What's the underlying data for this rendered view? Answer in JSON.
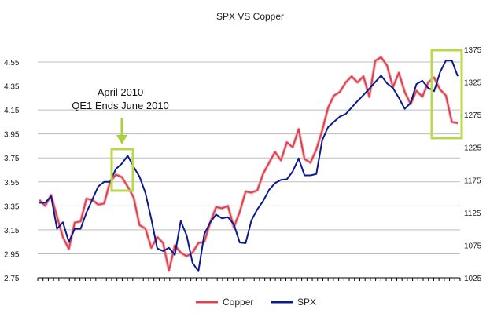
{
  "chart_data": {
    "type": "line",
    "title": "SPX VS Copper",
    "y_left": {
      "ticks": [
        2.75,
        2.95,
        3.15,
        3.35,
        3.55,
        3.75,
        3.95,
        4.15,
        4.35,
        4.55
      ],
      "labels": [
        "2.75",
        "2.95",
        "3.15",
        "3.35",
        "3.55",
        "3.75",
        "3.95",
        "4.15",
        "4.35",
        "4.55"
      ],
      "range": [
        2.75,
        4.65
      ]
    },
    "y_right": {
      "ticks": [
        1025,
        1075,
        1125,
        1175,
        1225,
        1275,
        1325,
        1375
      ],
      "labels": [
        "1025",
        "1075",
        "1125",
        "1175",
        "1225",
        "1275",
        "1325",
        "1375"
      ],
      "range": [
        1025,
        1375
      ]
    },
    "grid": true,
    "legend": "bottom",
    "annotations": [
      "April 2010",
      "QE1 Ends June 2010"
    ],
    "colors": {
      "copper": "#d94452",
      "spx": "#0b1a8c",
      "highlight": "#b8d94a",
      "arrow": "#a9cf3a"
    },
    "series": [
      {
        "name": "Copper",
        "axis": "left",
        "values": [
          3.4,
          3.35,
          3.44,
          3.26,
          3.09,
          2.99,
          3.21,
          3.22,
          3.41,
          3.4,
          3.36,
          3.37,
          3.55,
          3.61,
          3.59,
          3.51,
          3.42,
          3.19,
          3.16,
          3.0,
          3.09,
          3.04,
          2.81,
          3.02,
          2.96,
          2.93,
          2.96,
          3.04,
          3.05,
          3.21,
          3.34,
          3.33,
          3.35,
          3.17,
          3.3,
          3.47,
          3.46,
          3.48,
          3.62,
          3.71,
          3.8,
          3.73,
          3.88,
          3.84,
          3.99,
          3.74,
          3.71,
          3.82,
          3.98,
          4.17,
          4.27,
          4.3,
          4.38,
          4.43,
          4.38,
          4.43,
          4.26,
          4.56,
          4.59,
          4.52,
          4.34,
          4.46,
          4.3,
          4.2,
          4.31,
          4.26,
          4.38,
          4.42,
          4.32,
          4.27,
          4.05,
          4.04
        ]
      },
      {
        "name": "SPX",
        "axis": "right",
        "values": [
          1140,
          1140,
          1150,
          1100,
          1110,
          1080,
          1100,
          1100,
          1125,
          1145,
          1165,
          1172,
          1172,
          1192,
          1200,
          1212,
          1195,
          1180,
          1155,
          1115,
          1070,
          1066,
          1071,
          1060,
          1112,
          1090,
          1048,
          1035,
          1092,
          1110,
          1122,
          1116,
          1118,
          1107,
          1079,
          1078,
          1113,
          1130,
          1143,
          1160,
          1170,
          1175,
          1176,
          1188,
          1208,
          1182,
          1182,
          1184,
          1236,
          1256,
          1264,
          1272,
          1276,
          1286,
          1296,
          1305,
          1315,
          1325,
          1335,
          1323,
          1316,
          1301,
          1284,
          1293,
          1322,
          1327,
          1316,
          1311,
          1340,
          1358,
          1358,
          1334
        ]
      }
    ]
  }
}
